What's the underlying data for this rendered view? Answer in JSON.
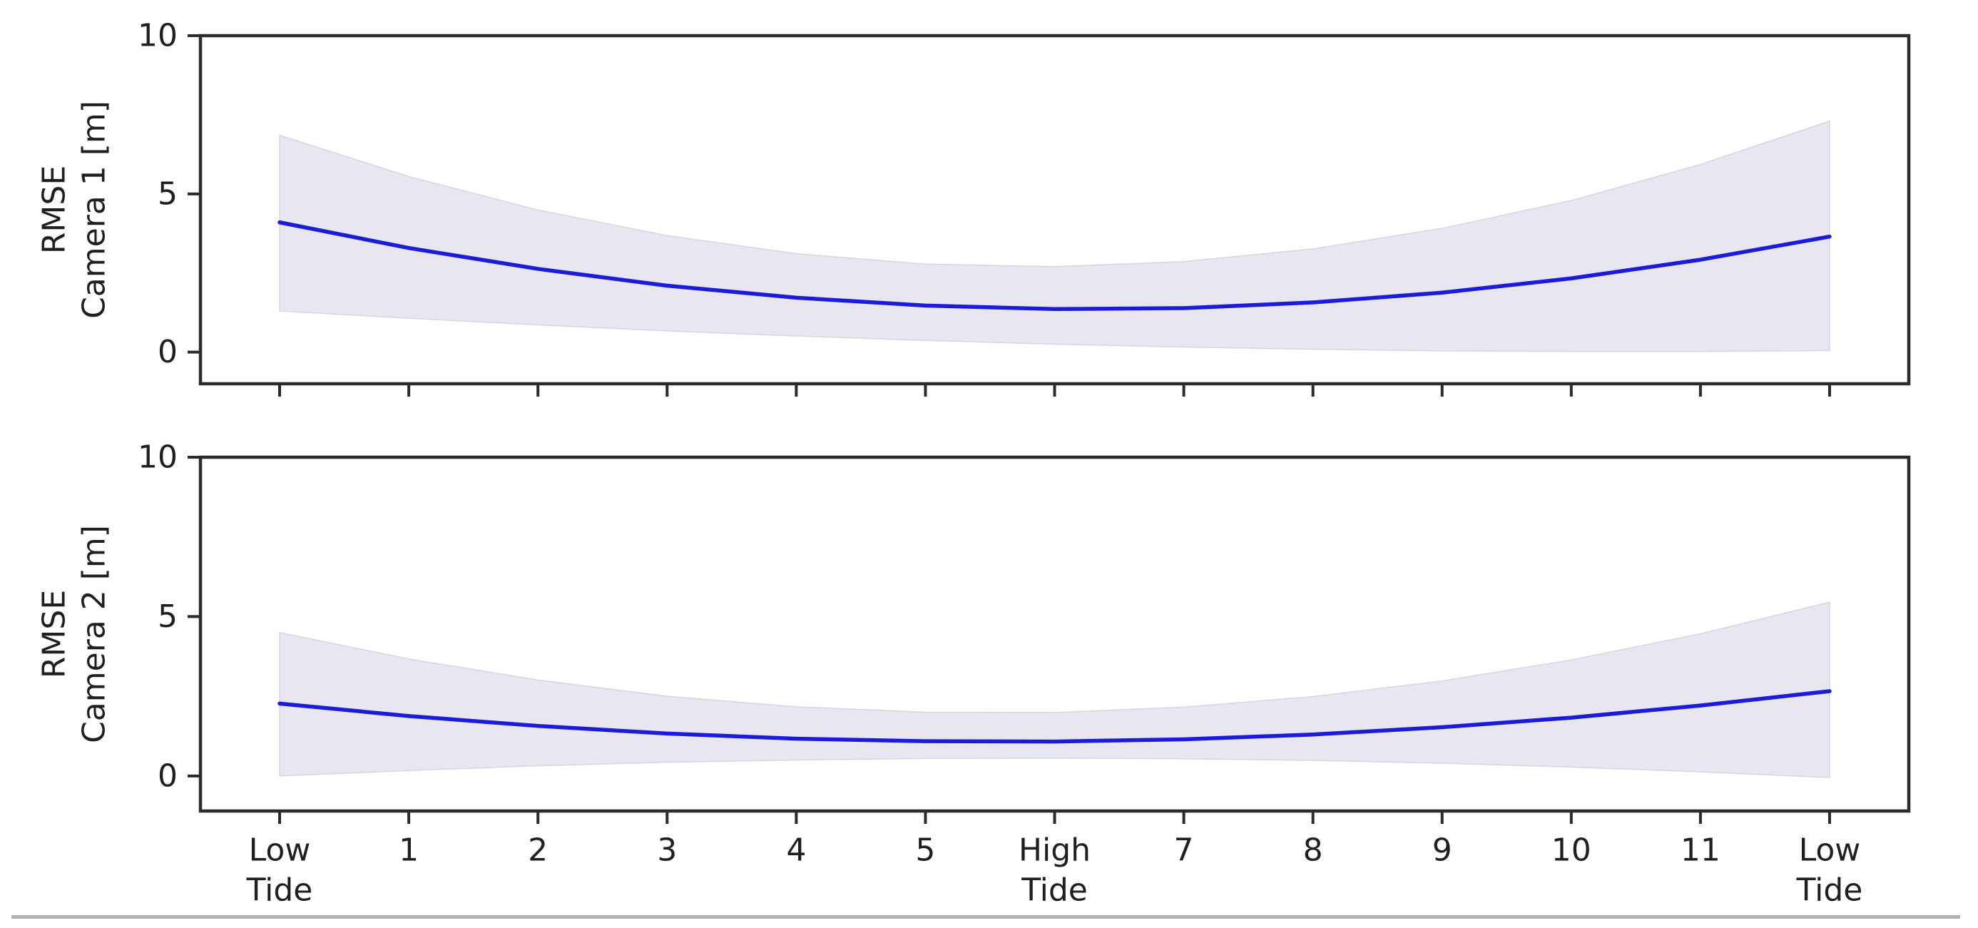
{
  "figure": {
    "background": "#ffffff",
    "line_color": "#1b1bd9",
    "band_fill_color": "#e7e6f1",
    "band_edge_color": "#d6d5e6",
    "axis_color": "#2b2b2b",
    "text_color": "#1f1f1f",
    "bottom_border_color": "#b3b3b3",
    "tick_font_size": 44,
    "label_font_size": 44
  },
  "chart_data": [
    {
      "type": "line",
      "title": "",
      "ylabel_line1": "RMSE",
      "ylabel_line2": "Camera 1 [m]",
      "xlabel": "",
      "x": [
        0,
        1,
        2,
        3,
        4,
        5,
        6,
        7,
        8,
        9,
        10,
        11,
        12
      ],
      "categories": [
        "Low\nTide",
        "1",
        "2",
        "3",
        "4",
        "5",
        "High\nTide",
        "7",
        "8",
        "9",
        "10",
        "11",
        "Low\nTide"
      ],
      "show_x_tick_labels": false,
      "yticks": [
        0,
        5,
        10
      ],
      "ytick_labels": [
        "0",
        "5",
        "10"
      ],
      "ylim": [
        -1.0,
        10.0
      ],
      "grid": false,
      "legend": "none",
      "series": [
        {
          "name": "mean",
          "values": [
            4.1,
            3.29,
            2.63,
            2.1,
            1.72,
            1.47,
            1.36,
            1.39,
            1.57,
            1.88,
            2.33,
            2.92,
            3.65
          ]
        }
      ],
      "band": {
        "upper": [
          6.85,
          5.55,
          4.49,
          3.68,
          3.11,
          2.78,
          2.7,
          2.86,
          3.26,
          3.91,
          4.79,
          5.93,
          7.3
        ],
        "lower": [
          1.3,
          1.07,
          0.86,
          0.67,
          0.51,
          0.37,
          0.25,
          0.16,
          0.09,
          0.04,
          0.02,
          0.02,
          0.05
        ]
      }
    },
    {
      "type": "line",
      "title": "",
      "ylabel_line1": "RMSE",
      "ylabel_line2": "Camera 2 [m]",
      "xlabel": "",
      "x": [
        0,
        1,
        2,
        3,
        4,
        5,
        6,
        7,
        8,
        9,
        10,
        11,
        12
      ],
      "categories": [
        "Low\nTide",
        "1",
        "2",
        "3",
        "4",
        "5",
        "High\nTide",
        "7",
        "8",
        "9",
        "10",
        "11",
        "Low\nTide"
      ],
      "show_x_tick_labels": true,
      "yticks": [
        0,
        5,
        10
      ],
      "ytick_labels": [
        "0",
        "5",
        "10"
      ],
      "ylim": [
        -1.1,
        10.0
      ],
      "grid": false,
      "legend": "none",
      "series": [
        {
          "name": "mean",
          "values": [
            2.27,
            1.88,
            1.57,
            1.33,
            1.17,
            1.09,
            1.08,
            1.15,
            1.3,
            1.53,
            1.83,
            2.21,
            2.66
          ]
        }
      ],
      "band": {
        "upper": [
          4.5,
          3.67,
          3.01,
          2.5,
          2.17,
          2.0,
          1.99,
          2.16,
          2.49,
          2.98,
          3.64,
          4.46,
          5.45
        ],
        "lower": [
          0.0,
          0.17,
          0.32,
          0.43,
          0.5,
          0.55,
          0.56,
          0.54,
          0.49,
          0.4,
          0.28,
          0.13,
          -0.05
        ]
      }
    }
  ]
}
